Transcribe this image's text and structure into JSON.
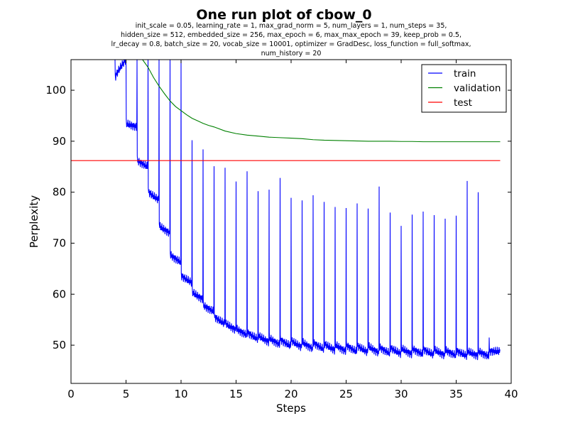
{
  "chart_data": {
    "type": "line",
    "title": "One run plot of cbow_0",
    "subtitle_lines": [
      "init_scale = 0.05, learning_rate = 1, max_grad_norm = 5, num_layers = 1, num_steps = 35,",
      "hidden_size = 512, embedded_size = 256, max_epoch = 6, max_max_epoch = 39, keep_prob = 0.5,",
      "lr_decay = 0.8, batch_size = 20, vocab_size = 10001, optimizer = GradDesc, loss_function = full_softmax,",
      "num_history = 20"
    ],
    "xlabel": "Steps",
    "ylabel": "Perplexity",
    "xlim": [
      0,
      40
    ],
    "ylim": [
      42.5,
      106
    ],
    "xticks": [
      "0",
      "5",
      "10",
      "15",
      "20",
      "25",
      "30",
      "35",
      "40"
    ],
    "yticks": [
      "50",
      "60",
      "70",
      "80",
      "90",
      "100"
    ],
    "legend_position": "top-right",
    "grid": false,
    "series": [
      {
        "name": "train",
        "color": "#0000ff",
        "epochs_start": 4,
        "epochs_end": 39,
        "segment_peaks": [
          106,
          106,
          106,
          106,
          106,
          106,
          106,
          90.2,
          88.4,
          85.1,
          84.8,
          82.1,
          84.1,
          80.2,
          80.5,
          82.8,
          78.9,
          78.4,
          79.4,
          78.1,
          77.1,
          76.9,
          77.8,
          76.8,
          81.1,
          76.0,
          73.4,
          75.6,
          76.2,
          75.5,
          74.8,
          75.4,
          82.2,
          80.0,
          51.5
        ],
        "segment_starts": [
          102.5,
          93.5,
          86.3,
          80.2,
          73.5,
          67.8,
          63.7,
          60.5,
          57.9,
          55.7,
          54.4,
          53.3,
          52.6,
          52.0,
          51.5,
          51.2,
          51.0,
          50.7,
          50.6,
          50.4,
          50.2,
          50.1,
          50.0,
          49.9,
          49.7,
          49.6,
          49.5,
          49.4,
          49.3,
          49.2,
          49.1,
          49.0,
          48.9,
          48.9,
          48.8
        ],
        "segment_ends": [
          106,
          92.8,
          85.0,
          78.5,
          72.0,
          66.3,
          62.3,
          59.0,
          56.6,
          54.2,
          53.0,
          52.0,
          51.2,
          50.6,
          50.1,
          49.8,
          49.6,
          49.3,
          49.2,
          49.0,
          48.8,
          48.7,
          48.6,
          48.5,
          48.4,
          48.3,
          48.2,
          48.2,
          48.1,
          48.0,
          48.0,
          47.9,
          47.9,
          47.8,
          48.8
        ]
      },
      {
        "name": "validation",
        "color": "#008000",
        "x": [
          5.8,
          6.5,
          7,
          7.5,
          8,
          8.5,
          9,
          9.5,
          10,
          10.5,
          11,
          11.5,
          12,
          12.5,
          13,
          14,
          15,
          16,
          17,
          18,
          19,
          20,
          21,
          22,
          23,
          24,
          25,
          26,
          27,
          28,
          29,
          30,
          31,
          32,
          33,
          34,
          35,
          36,
          37,
          38,
          39
        ],
        "y": [
          106,
          106,
          104.5,
          102.5,
          100.8,
          99.3,
          97.9,
          96.8,
          96.0,
          95.2,
          94.5,
          94.0,
          93.5,
          93.1,
          92.8,
          92.0,
          91.5,
          91.2,
          91.0,
          90.8,
          90.7,
          90.6,
          90.5,
          90.3,
          90.2,
          90.15,
          90.1,
          90.05,
          90.0,
          90.0,
          90.0,
          89.95,
          89.95,
          89.9,
          89.9,
          89.9,
          89.9,
          89.9,
          89.9,
          89.9,
          89.9
        ]
      },
      {
        "name": "test",
        "color": "#ff0000",
        "x": [
          0,
          39
        ],
        "y": [
          86.2,
          86.2
        ]
      }
    ]
  }
}
